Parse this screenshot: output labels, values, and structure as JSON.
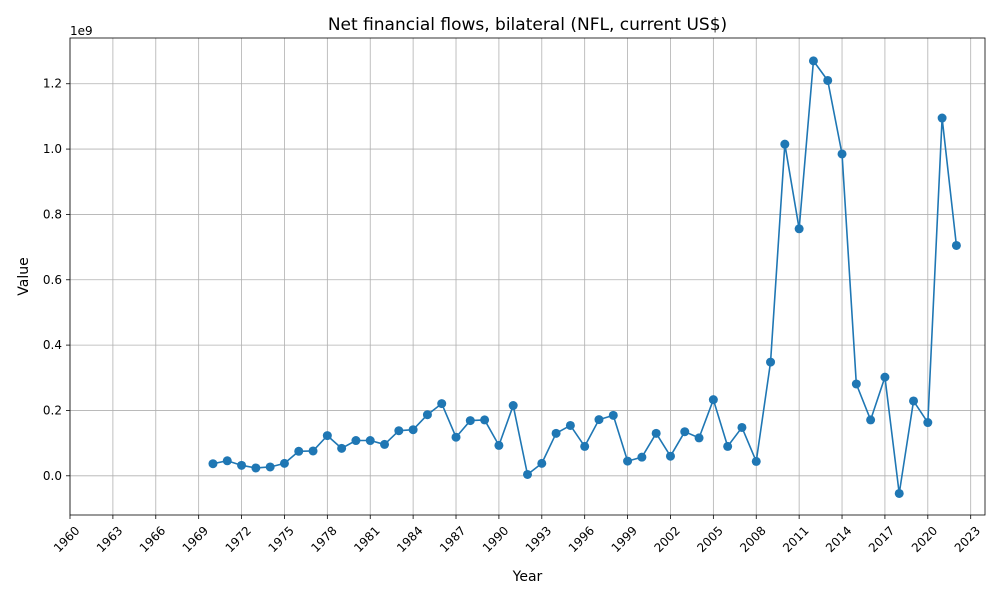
{
  "chart_data": {
    "type": "line",
    "title": "Net financial flows, bilateral (NFL, current US$)",
    "xlabel": "Year",
    "ylabel": "Value",
    "y_offset_label": "1e9",
    "xlim": [
      1960,
      2024
    ],
    "ylim": [
      -0.12,
      1.34
    ],
    "x_ticks": [
      1960,
      1963,
      1966,
      1969,
      1972,
      1975,
      1978,
      1981,
      1984,
      1987,
      1990,
      1993,
      1996,
      1999,
      2002,
      2005,
      2008,
      2011,
      2014,
      2017,
      2020,
      2023
    ],
    "y_ticks": [
      0.0,
      0.2,
      0.4,
      0.6,
      0.8,
      1.0,
      1.2
    ],
    "y_tick_labels": [
      "0.0",
      "0.2",
      "0.4",
      "0.6",
      "0.8",
      "1.0",
      "1.2"
    ],
    "grid": true,
    "colors": {
      "line": "#1f77b4",
      "grid": "#b0b0b0"
    },
    "series": [
      {
        "x": [
          1970,
          1971,
          1972,
          1973,
          1974,
          1975,
          1976,
          1977,
          1978,
          1979,
          1980,
          1981,
          1982,
          1983,
          1984,
          1985,
          1986,
          1987,
          1988,
          1989,
          1990,
          1991,
          1992,
          1993,
          1994,
          1995,
          1996,
          1997,
          1998,
          1999,
          2000,
          2001,
          2002,
          2003,
          2004,
          2005,
          2006,
          2007,
          2008,
          2009,
          2010,
          2011,
          2012,
          2013,
          2014,
          2015,
          2016,
          2017,
          2018,
          2019,
          2020,
          2021,
          2022
        ],
        "values": [
          0.037,
          0.046,
          0.032,
          0.024,
          0.027,
          0.038,
          0.075,
          0.076,
          0.123,
          0.084,
          0.108,
          0.108,
          0.096,
          0.138,
          0.141,
          0.187,
          0.221,
          0.118,
          0.169,
          0.171,
          0.093,
          0.215,
          0.004,
          0.038,
          0.13,
          0.154,
          0.09,
          0.172,
          0.185,
          0.045,
          0.057,
          0.13,
          0.06,
          0.135,
          0.116,
          0.233,
          0.09,
          0.148,
          0.044,
          0.348,
          1.015,
          0.756,
          1.27,
          1.21,
          0.985,
          0.281,
          0.171,
          0.302,
          -0.054,
          0.229,
          0.163,
          1.095,
          0.705
        ]
      }
    ]
  }
}
